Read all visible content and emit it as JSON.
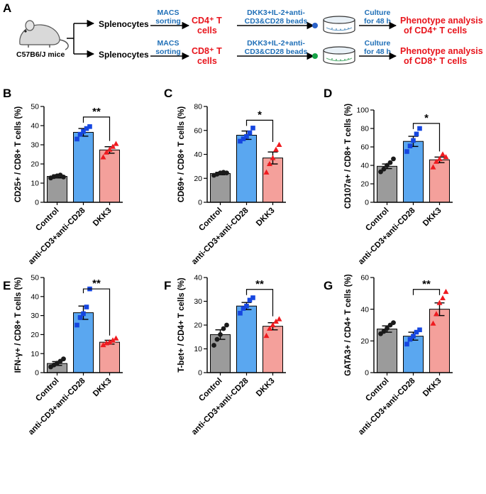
{
  "workflow": {
    "label": "A",
    "mouse_label": "C57B6/J mice",
    "rows": [
      {
        "splenocytes": "Splenocytes",
        "sorting_line1": "MACS",
        "sorting_line2": "sorting",
        "cell_line1": "CD4⁺ T",
        "cell_line2": "cells",
        "stim_line1": "DKK3+IL-2+anti-",
        "stim_line2": "CD3&CD28 beads",
        "culture_line1": "Culture",
        "culture_line2": "for 48 h",
        "result_line1": "Phenotype analysis",
        "result_line2": "of CD4⁺ T cells",
        "dot_color": "#2b62c9"
      },
      {
        "splenocytes": "Splenocytes",
        "sorting_line1": "MACS",
        "sorting_line2": "sorting",
        "cell_line1": "CD8⁺ T",
        "cell_line2": "cells",
        "stim_line1": "DKK3+IL-2+anti-",
        "stim_line2": "CD3&CD28 beads",
        "culture_line1": "Culture",
        "culture_line2": "for 48 h",
        "result_line1": "Phenotype analysis",
        "result_line2": "of CD8⁺ T cells",
        "dot_color": "#16a346"
      }
    ]
  },
  "colors": {
    "control_bar": "#9b9b9b",
    "stim_bar": "#5aa7f0",
    "dkk3_bar": "#f4a09b",
    "control_marker": "#1a1a1a",
    "stim_marker": "#1546e0",
    "dkk3_marker": "#ef1b20",
    "workflow_blue": "#1f6fb7",
    "workflow_red": "#e8141c"
  },
  "chart_data": [
    {
      "panel": "B",
      "type": "bar",
      "categories": [
        "Control",
        "anti-CD3+anti-CD28",
        "DKK3"
      ],
      "ylabel": "CD25+ / CD8+ T cells (%)",
      "ylim": [
        0,
        50
      ],
      "yticks": [
        0,
        10,
        20,
        30,
        40,
        50
      ],
      "means": [
        13.5,
        36.5,
        27.3
      ],
      "sem": [
        0.8,
        2.0,
        1.7
      ],
      "points": [
        [
          12.7,
          13.4,
          13.8,
          14.2,
          13.2
        ],
        [
          33.0,
          35.5,
          37.0,
          38.5,
          39.5
        ],
        [
          23.5,
          26.0,
          27.5,
          29.0,
          30.5
        ]
      ],
      "markers": [
        "circle",
        "square",
        "triangle"
      ],
      "significance": {
        "between": [
          1,
          2
        ],
        "label": "**",
        "y": 44.5
      }
    },
    {
      "panel": "C",
      "type": "bar",
      "categories": [
        "Control",
        "anti-CD3+anti-CD28",
        "DKK3"
      ],
      "ylabel": "CD69+ / CD8+ T cells (%)",
      "ylim": [
        0,
        80
      ],
      "yticks": [
        0,
        20,
        40,
        60,
        80
      ],
      "means": [
        24.0,
        56.0,
        37.0
      ],
      "sem": [
        1.0,
        3.5,
        5.0
      ],
      "points": [
        [
          22.5,
          23.5,
          24.5,
          25.0,
          24.5
        ],
        [
          51.0,
          53.0,
          55.0,
          58.0,
          62.0
        ],
        [
          25.0,
          32.0,
          37.0,
          44.0,
          48.0
        ]
      ],
      "markers": [
        "circle",
        "square",
        "triangle"
      ],
      "significance": {
        "between": [
          1,
          2
        ],
        "label": "*",
        "y": 68.5
      }
    },
    {
      "panel": "D",
      "type": "bar",
      "categories": [
        "Control",
        "anti-CD3+anti-CD28",
        "DKK3"
      ],
      "ylabel": "CD107a+ / CD8+ T cells (%)",
      "ylim": [
        0,
        100
      ],
      "yticks": [
        0,
        20,
        40,
        60,
        80,
        100
      ],
      "means": [
        39.0,
        66.0,
        46.0
      ],
      "sem": [
        2.5,
        5.5,
        3.0
      ],
      "points": [
        [
          33.0,
          36.0,
          40.0,
          43.0,
          47.0
        ],
        [
          55.0,
          61.0,
          67.0,
          74.0,
          80.0
        ],
        [
          38.0,
          44.0,
          47.0,
          52.0,
          49.0
        ]
      ],
      "markers": [
        "circle",
        "square",
        "triangle"
      ],
      "significance": {
        "between": [
          1,
          2
        ],
        "label": "*",
        "y": 85.5
      }
    },
    {
      "panel": "E",
      "type": "bar",
      "categories": [
        "Control",
        "anti-CD3+anti-CD28",
        "DKK3"
      ],
      "ylabel": "IFN-γ+ / CD8+ T cells (%)",
      "ylim": [
        0,
        50
      ],
      "yticks": [
        0,
        10,
        20,
        30,
        40,
        50
      ],
      "means": [
        4.8,
        31.5,
        16.0
      ],
      "sem": [
        1.0,
        3.5,
        1.0
      ],
      "points": [
        [
          3.0,
          4.0,
          5.0,
          6.0,
          7.2
        ],
        [
          25.0,
          29.0,
          31.0,
          34.5,
          44.0
        ],
        [
          14.5,
          15.5,
          16.0,
          17.0,
          18.0
        ]
      ],
      "markers": [
        "circle",
        "square",
        "triangle"
      ],
      "significance": {
        "between": [
          1,
          2
        ],
        "label": "**",
        "y": 44.0
      }
    },
    {
      "panel": "F",
      "type": "bar",
      "categories": [
        "Control",
        "anti-CD3+anti-CD28",
        "DKK3"
      ],
      "ylabel": "T-bet+ / CD4+ T cells (%)",
      "ylim": [
        0,
        40
      ],
      "yticks": [
        0,
        10,
        20,
        30,
        40
      ],
      "means": [
        16.0,
        28.0,
        19.5
      ],
      "sem": [
        2.0,
        1.5,
        1.5
      ],
      "points": [
        [
          11.5,
          14.0,
          16.0,
          18.5,
          20.0
        ],
        [
          25.0,
          27.0,
          28.0,
          30.5,
          31.5
        ],
        [
          15.5,
          18.5,
          20.0,
          21.5,
          22.5
        ]
      ],
      "markers": [
        "circle",
        "square",
        "triangle"
      ],
      "significance": {
        "between": [
          1,
          2
        ],
        "label": "**",
        "y": 35.0
      }
    },
    {
      "panel": "G",
      "type": "bar",
      "categories": [
        "Control",
        "anti-CD3+anti-CD28",
        "DKK3"
      ],
      "ylabel": "GATA3+ / CD4+ T cells (%)",
      "ylim": [
        0,
        60
      ],
      "yticks": [
        0,
        20,
        40,
        60
      ],
      "means": [
        27.5,
        23.0,
        40.0
      ],
      "sem": [
        2.0,
        2.5,
        4.0
      ],
      "points": [
        [
          24.5,
          26.0,
          28.0,
          30.0,
          31.5
        ],
        [
          18.0,
          21.0,
          23.0,
          25.5,
          27.0
        ],
        [
          31.0,
          37.0,
          44.0,
          47.0,
          51.0
        ]
      ],
      "markers": [
        "circle",
        "square",
        "triangle"
      ],
      "significance": {
        "between": [
          1,
          2
        ],
        "label": "**",
        "y": 52.5
      }
    }
  ]
}
